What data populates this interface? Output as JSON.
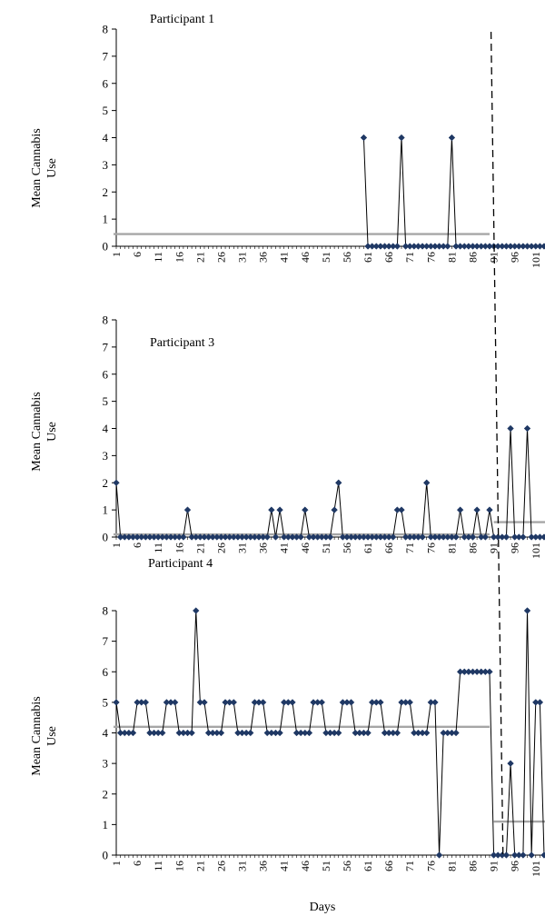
{
  "chart_data": {
    "type": "line",
    "xlabel": "Days",
    "x_ticks": [
      1,
      6,
      11,
      16,
      21,
      26,
      31,
      36,
      41,
      46,
      51,
      56,
      61,
      66,
      71,
      76,
      81,
      86,
      91,
      96,
      101
    ],
    "xlim": [
      1,
      103
    ],
    "phase_change_day": 91,
    "colors": {
      "series": "#000000",
      "marker": "#1f3864",
      "mean_line": "#a6a6a6",
      "phase_line": "#000000"
    },
    "panels": [
      {
        "title": "Participant 1",
        "ylabel": "Mean Cannabis Use",
        "ylim": [
          0,
          8
        ],
        "y_ticks": [
          0,
          1,
          2,
          3,
          4,
          5,
          6,
          7,
          8
        ],
        "x": [
          60,
          61,
          62,
          63,
          64,
          65,
          66,
          67,
          68,
          69,
          70,
          71,
          72,
          73,
          74,
          75,
          76,
          77,
          78,
          79,
          80,
          81,
          82,
          83,
          84,
          85,
          86,
          87,
          88,
          89,
          90,
          91,
          92,
          93,
          94,
          95,
          96,
          97,
          98,
          99,
          100,
          101,
          102,
          103
        ],
        "values": [
          4,
          0,
          0,
          0,
          0,
          0,
          0,
          0,
          0,
          4,
          0,
          0,
          0,
          0,
          0,
          0,
          0,
          0,
          0,
          0,
          0,
          4,
          0,
          0,
          0,
          0,
          0,
          0,
          0,
          0,
          0,
          0,
          0,
          0,
          0,
          0,
          0,
          0,
          0,
          0,
          0,
          0,
          0,
          0
        ],
        "phase_means": [
          {
            "from": 1,
            "to": 90,
            "value": 0.45
          },
          {
            "from": 91,
            "to": 103,
            "value": 0
          }
        ]
      },
      {
        "title": "Participant 3",
        "ylabel": "Mean Cannabis Use",
        "ylim": [
          0,
          8
        ],
        "y_ticks": [
          0,
          1,
          2,
          3,
          4,
          5,
          6,
          7,
          8
        ],
        "x": [
          1,
          2,
          3,
          4,
          5,
          6,
          7,
          8,
          9,
          10,
          11,
          12,
          13,
          14,
          15,
          16,
          17,
          18,
          19,
          20,
          21,
          22,
          23,
          24,
          25,
          26,
          27,
          28,
          29,
          30,
          31,
          32,
          33,
          34,
          35,
          36,
          37,
          38,
          39,
          40,
          41,
          42,
          43,
          44,
          45,
          46,
          47,
          48,
          49,
          50,
          51,
          52,
          53,
          54,
          55,
          56,
          57,
          58,
          59,
          60,
          61,
          62,
          63,
          64,
          65,
          66,
          67,
          68,
          69,
          70,
          71,
          72,
          73,
          74,
          75,
          76,
          77,
          78,
          79,
          80,
          81,
          82,
          83,
          84,
          85,
          86,
          87,
          88,
          89,
          90,
          91,
          92,
          93,
          94,
          95,
          96,
          97,
          98,
          99,
          100,
          101,
          102,
          103
        ],
        "values": [
          2,
          0,
          0,
          0,
          0,
          0,
          0,
          0,
          0,
          0,
          0,
          0,
          0,
          0,
          0,
          0,
          0,
          1,
          0,
          0,
          0,
          0,
          0,
          0,
          0,
          0,
          0,
          0,
          0,
          0,
          0,
          0,
          0,
          0,
          0,
          0,
          0,
          1,
          0,
          1,
          0,
          0,
          0,
          0,
          0,
          1,
          0,
          0,
          0,
          0,
          0,
          0,
          1,
          2,
          0,
          0,
          0,
          0,
          0,
          0,
          0,
          0,
          0,
          0,
          0,
          0,
          0,
          1,
          1,
          0,
          0,
          0,
          0,
          0,
          2,
          0,
          0,
          0,
          0,
          0,
          0,
          0,
          1,
          0,
          0,
          0,
          1,
          0,
          0,
          1,
          0,
          0,
          0,
          0,
          4,
          0,
          0,
          0,
          4,
          0,
          0,
          0,
          0
        ],
        "phase_means": [
          {
            "from": 1,
            "to": 90,
            "value": 0.1
          },
          {
            "from": 91,
            "to": 103,
            "value": 0.55
          }
        ]
      },
      {
        "title": "Participant 4",
        "ylabel": "Mean Cannabis Use",
        "ylim": [
          0,
          8
        ],
        "y_ticks": [
          0,
          1,
          2,
          3,
          4,
          5,
          6,
          7,
          8
        ],
        "x": [
          1,
          2,
          3,
          4,
          5,
          6,
          7,
          8,
          9,
          10,
          11,
          12,
          13,
          14,
          15,
          16,
          17,
          18,
          19,
          20,
          21,
          22,
          23,
          24,
          25,
          26,
          27,
          28,
          29,
          30,
          31,
          32,
          33,
          34,
          35,
          36,
          37,
          38,
          39,
          40,
          41,
          42,
          43,
          44,
          45,
          46,
          47,
          48,
          49,
          50,
          51,
          52,
          53,
          54,
          55,
          56,
          57,
          58,
          59,
          60,
          61,
          62,
          63,
          64,
          65,
          66,
          67,
          68,
          69,
          70,
          71,
          72,
          73,
          74,
          75,
          76,
          77,
          78,
          79,
          80,
          81,
          82,
          83,
          84,
          85,
          86,
          87,
          88,
          89,
          90,
          91,
          92,
          93,
          94,
          95,
          96,
          97,
          98,
          99,
          100,
          101,
          102,
          103
        ],
        "values": [
          5,
          4,
          4,
          4,
          4,
          5,
          5,
          5,
          4,
          4,
          4,
          4,
          5,
          5,
          5,
          4,
          4,
          4,
          4,
          8,
          5,
          5,
          4,
          4,
          4,
          4,
          5,
          5,
          5,
          4,
          4,
          4,
          4,
          5,
          5,
          5,
          4,
          4,
          4,
          4,
          5,
          5,
          5,
          4,
          4,
          4,
          4,
          5,
          5,
          5,
          4,
          4,
          4,
          4,
          5,
          5,
          5,
          4,
          4,
          4,
          4,
          5,
          5,
          5,
          4,
          4,
          4,
          4,
          5,
          5,
          5,
          4,
          4,
          4,
          4,
          5,
          5,
          0,
          4,
          4,
          4,
          4,
          6,
          6,
          6,
          6,
          6,
          6,
          6,
          6,
          0,
          0,
          0,
          0,
          3,
          0,
          0,
          0,
          8,
          0,
          5,
          5,
          0
        ],
        "phase_means": [
          {
            "from": 1,
            "to": 90,
            "value": 4.2
          },
          {
            "from": 91,
            "to": 103,
            "value": 1.1
          }
        ]
      }
    ]
  }
}
